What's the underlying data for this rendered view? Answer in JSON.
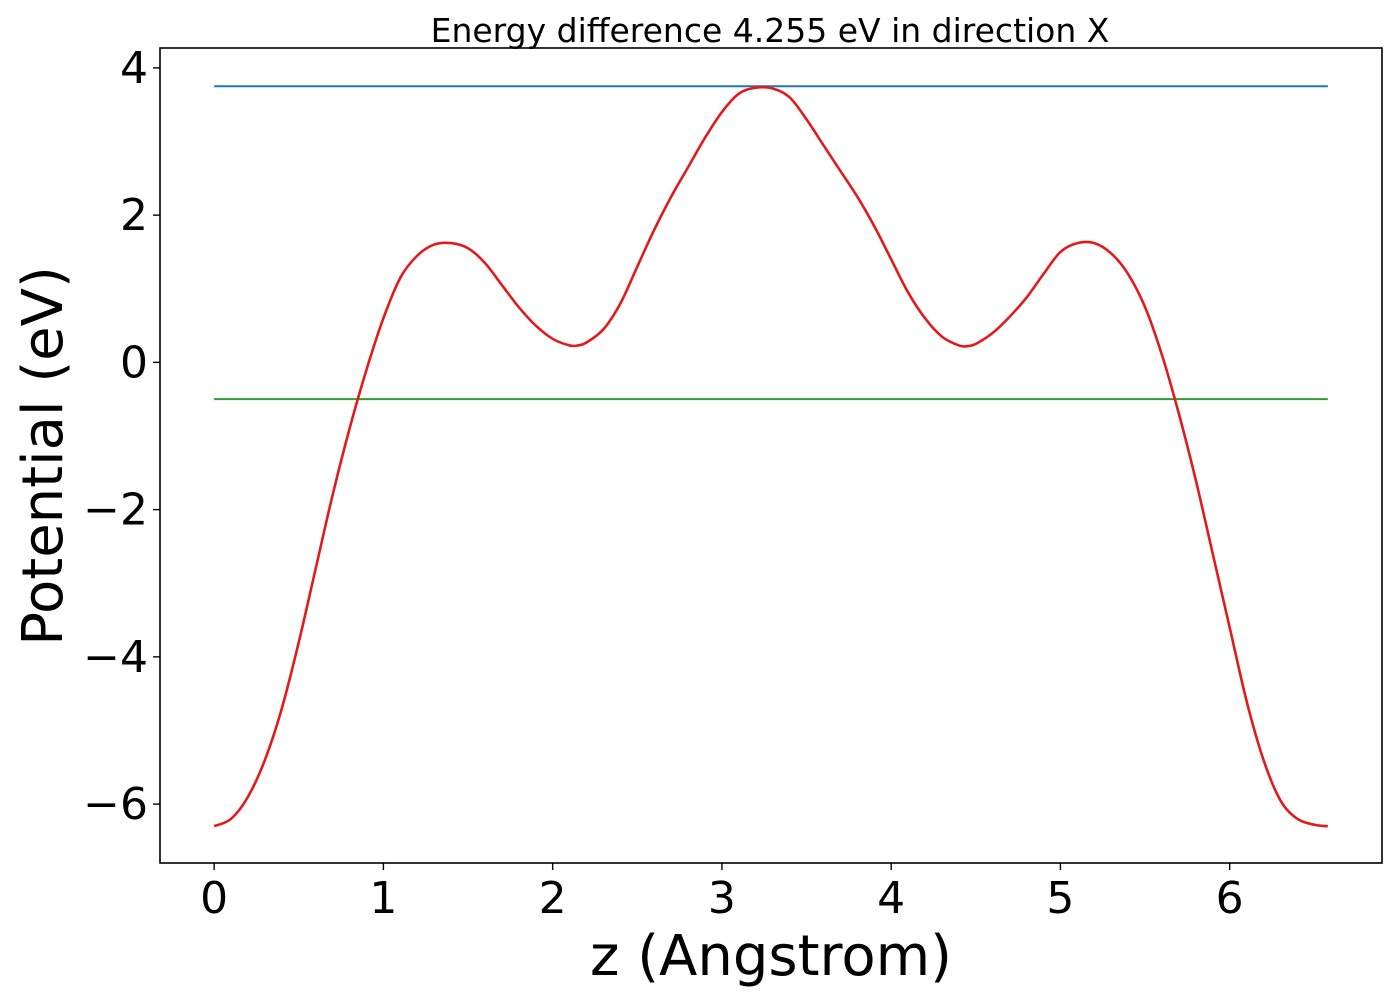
{
  "chart_data": {
    "type": "line",
    "title": "Energy difference 4.255 eV in direction X",
    "xlabel": "z (Angstrom)",
    "ylabel": "Potential (eV)",
    "xlim": [
      -0.32,
      6.9
    ],
    "ylim": [
      -6.8,
      4.27
    ],
    "xticks": [
      0,
      1,
      2,
      3,
      4,
      5,
      6
    ],
    "xtick_labels": [
      "0",
      "1",
      "2",
      "3",
      "4",
      "5",
      "6"
    ],
    "yticks": [
      -6,
      -4,
      -2,
      0,
      2,
      4
    ],
    "ytick_labels": [
      "−6",
      "−4",
      "−2",
      "0",
      "2",
      "4"
    ],
    "grid": false,
    "series": [
      {
        "color": "#1f77b4",
        "x": [
          0,
          6.58
        ],
        "y": [
          3.75,
          3.75
        ]
      },
      {
        "color": "#2ca02c",
        "x": [
          0,
          6.58
        ],
        "y": [
          -0.5,
          -0.5
        ]
      },
      {
        "color": "#e31a1c",
        "x": [
          0,
          0.1,
          0.2,
          0.3,
          0.4,
          0.5,
          0.6,
          0.7,
          0.8,
          0.9,
          1.0,
          1.1,
          1.2,
          1.3,
          1.4,
          1.5,
          1.6,
          1.7,
          1.8,
          1.9,
          2.0,
          2.1,
          2.15,
          2.2,
          2.3,
          2.4,
          2.5,
          2.6,
          2.7,
          2.8,
          2.9,
          3.0,
          3.1,
          3.2,
          3.3,
          3.4,
          3.5,
          3.6,
          3.7,
          3.8,
          3.9,
          4.0,
          4.1,
          4.2,
          4.3,
          4.4,
          4.45,
          4.5,
          4.6,
          4.7,
          4.8,
          4.9,
          5.0,
          5.1,
          5.2,
          5.3,
          5.4,
          5.5,
          5.6,
          5.7,
          5.8,
          5.9,
          6.0,
          6.1,
          6.2,
          6.3,
          6.4,
          6.5,
          6.58
        ],
        "y": [
          -6.3,
          -6.2,
          -5.9,
          -5.4,
          -4.7,
          -3.8,
          -2.8,
          -1.8,
          -0.9,
          -0.1,
          0.6,
          1.15,
          1.45,
          1.6,
          1.62,
          1.55,
          1.35,
          1.05,
          0.75,
          0.5,
          0.32,
          0.23,
          0.23,
          0.27,
          0.45,
          0.8,
          1.3,
          1.8,
          2.25,
          2.65,
          3.05,
          3.4,
          3.65,
          3.73,
          3.72,
          3.6,
          3.3,
          2.95,
          2.6,
          2.25,
          1.85,
          1.4,
          0.95,
          0.6,
          0.35,
          0.23,
          0.22,
          0.25,
          0.4,
          0.62,
          0.88,
          1.2,
          1.5,
          1.62,
          1.62,
          1.48,
          1.2,
          0.75,
          0.1,
          -0.7,
          -1.6,
          -2.6,
          -3.6,
          -4.6,
          -5.4,
          -5.95,
          -6.2,
          -6.28,
          -6.3
        ]
      }
    ]
  }
}
